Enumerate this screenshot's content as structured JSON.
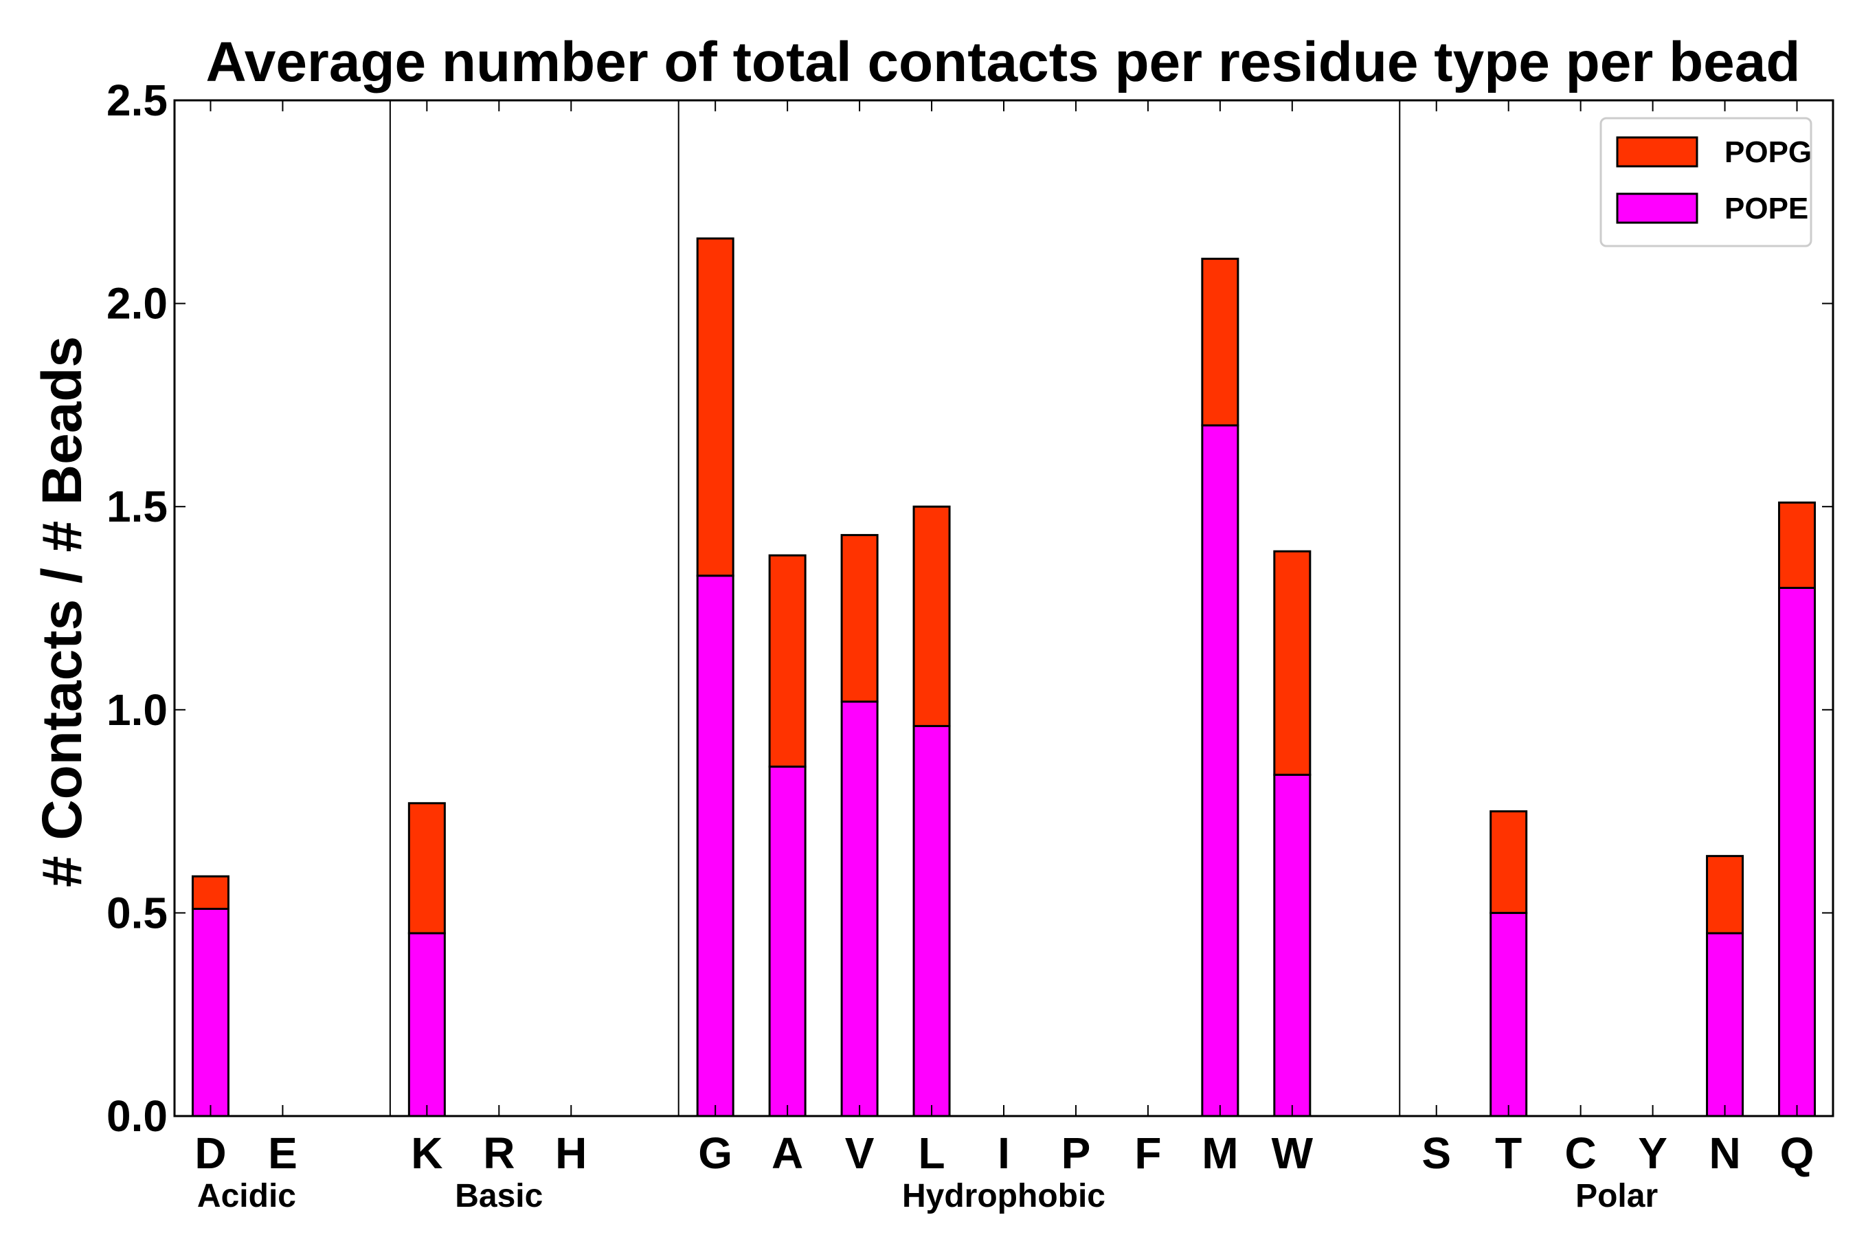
{
  "chart_data": {
    "type": "bar",
    "stacked": true,
    "title": "Average number of total contacts per residue type per bead",
    "xlabel": "",
    "ylabel": "# Contacts / # Beads",
    "ylim": [
      0,
      2.5
    ],
    "yticks": [
      "0.0",
      "0.5",
      "1.0",
      "1.5",
      "2.0",
      "2.5"
    ],
    "ytick_values": [
      0,
      0.5,
      1.0,
      1.5,
      2.0,
      2.5
    ],
    "categories": [
      "D",
      "E",
      "",
      "K",
      "R",
      "H",
      "",
      "G",
      "A",
      "V",
      "L",
      "I",
      "P",
      "F",
      "M",
      "W",
      "",
      "S",
      "T",
      "C",
      "Y",
      "N",
      "Q"
    ],
    "series": [
      {
        "name": "POPE",
        "color": "#ff00ff",
        "values": [
          0.51,
          0,
          0,
          0.45,
          0,
          0,
          0,
          1.33,
          0.86,
          1.02,
          0.96,
          0,
          0,
          0,
          1.7,
          0.84,
          0,
          0,
          0.5,
          0,
          0,
          0.45,
          1.3
        ]
      },
      {
        "name": "POPG",
        "color": "#ff3300",
        "values": [
          0.08,
          0,
          0,
          0.32,
          0,
          0,
          0,
          0.83,
          0.52,
          0.41,
          0.54,
          0,
          0,
          0,
          0.41,
          0.55,
          0,
          0,
          0.25,
          0,
          0,
          0.19,
          0.21
        ]
      }
    ],
    "groups": [
      {
        "label": "Acidic",
        "start": 0,
        "end": 1
      },
      {
        "label": "Basic",
        "start": 3,
        "end": 5
      },
      {
        "label": "Hydrophobic",
        "start": 7,
        "end": 15
      },
      {
        "label": "Polar",
        "start": 17,
        "end": 22
      }
    ],
    "separators_after": [
      2,
      6,
      16
    ],
    "legend": {
      "position": "top-right",
      "entries": [
        "POPG",
        "POPE"
      ]
    }
  }
}
